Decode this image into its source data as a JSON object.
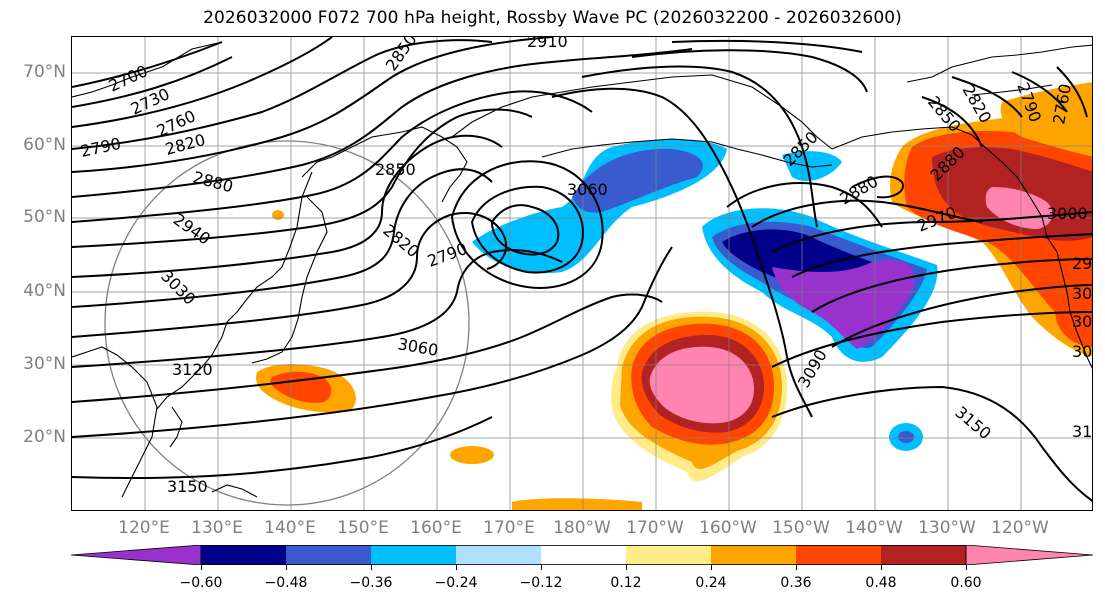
{
  "title": "2026032000 F072 700 hPa height, Rossby Wave PC (2026032200 - 2026032600)",
  "lat_labels": [
    "70°N",
    "60°N",
    "50°N",
    "40°N",
    "30°N",
    "20°N"
  ],
  "lon_labels": [
    "120°E",
    "130°E",
    "140°E",
    "150°E",
    "160°E",
    "170°E",
    "180°W",
    "170°W",
    "160°W",
    "150°W",
    "140°W",
    "130°W",
    "120°W"
  ],
  "contour_labels": [
    "2700",
    "2730",
    "2760",
    "2790",
    "2820",
    "2850",
    "2880",
    "2910",
    "2940",
    "2970",
    "3000",
    "3030",
    "3060",
    "3090",
    "3120",
    "3150",
    "2790",
    "2820",
    "2850",
    "2850",
    "2880",
    "2880",
    "2970",
    "3000",
    "3060",
    "3060",
    "3090",
    "3150",
    "3150",
    "2760",
    "2850",
    "2820",
    "2790"
  ],
  "colorbar": {
    "ticks": [
      "−0.60",
      "−0.48",
      "−0.36",
      "−0.24",
      "−0.12",
      "0.12",
      "0.24",
      "0.36",
      "0.48",
      "0.60"
    ],
    "colors": [
      "#9932CC",
      "#00008B",
      "#3A5BCD",
      "#00BFFF",
      "#B0E0FF",
      "#FFFFFF",
      "#FFEB8A",
      "#FFA500",
      "#FF4500",
      "#B22222",
      "#FF85B0"
    ]
  },
  "colors": {
    "land_outline": "#000000",
    "gridline": "#808080",
    "contour": "#000000"
  }
}
